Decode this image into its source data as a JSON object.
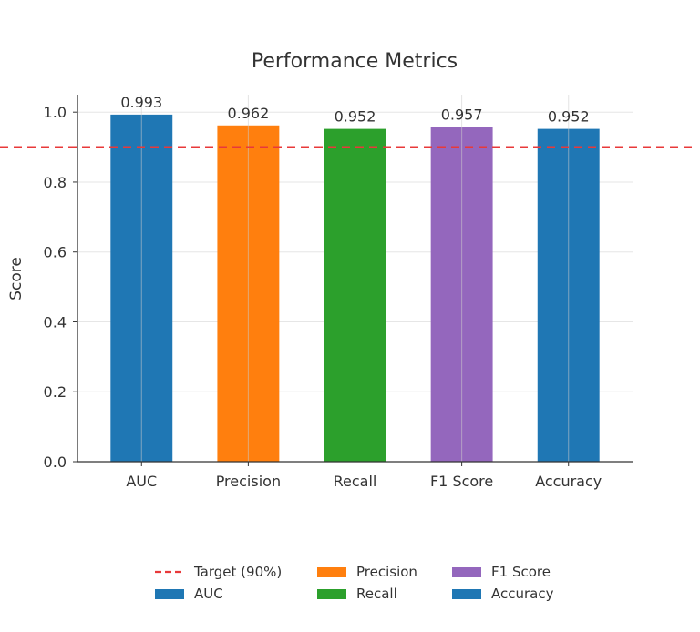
{
  "chart_data": {
    "type": "bar",
    "title": "Performance Metrics",
    "xlabel": "",
    "ylabel": "Score",
    "categories": [
      "AUC",
      "Precision",
      "Recall",
      "F1 Score",
      "Accuracy"
    ],
    "values": [
      0.993,
      0.962,
      0.952,
      0.957,
      0.952
    ],
    "value_labels": [
      "0.993",
      "0.962",
      "0.952",
      "0.957",
      "0.952"
    ],
    "colors": [
      "#1f77b4",
      "#ff7f0e",
      "#2ca02c",
      "#9467bd",
      "#1f77b4"
    ],
    "ylim": [
      0,
      1.05
    ],
    "yticks": [
      0.0,
      0.2,
      0.4,
      0.6,
      0.8,
      1.0
    ],
    "ytick_labels": [
      "0.0",
      "0.2",
      "0.4",
      "0.6",
      "0.8",
      "1.0"
    ],
    "grid": true,
    "reference_line": {
      "label": "Target (90%)",
      "value": 0.9,
      "color": "#e8393a",
      "style": "dashed"
    },
    "legend": {
      "placement": "bottom-center",
      "columns": 3,
      "entries": [
        {
          "label": "Target (90%)",
          "kind": "line",
          "color": "#e8393a"
        },
        {
          "label": "AUC",
          "kind": "patch",
          "color": "#1f77b4"
        },
        {
          "label": "Precision",
          "kind": "patch",
          "color": "#ff7f0e"
        },
        {
          "label": "Recall",
          "kind": "patch",
          "color": "#2ca02c"
        },
        {
          "label": "F1 Score",
          "kind": "patch",
          "color": "#9467bd"
        },
        {
          "label": "Accuracy",
          "kind": "patch",
          "color": "#1f77b4"
        }
      ]
    }
  }
}
